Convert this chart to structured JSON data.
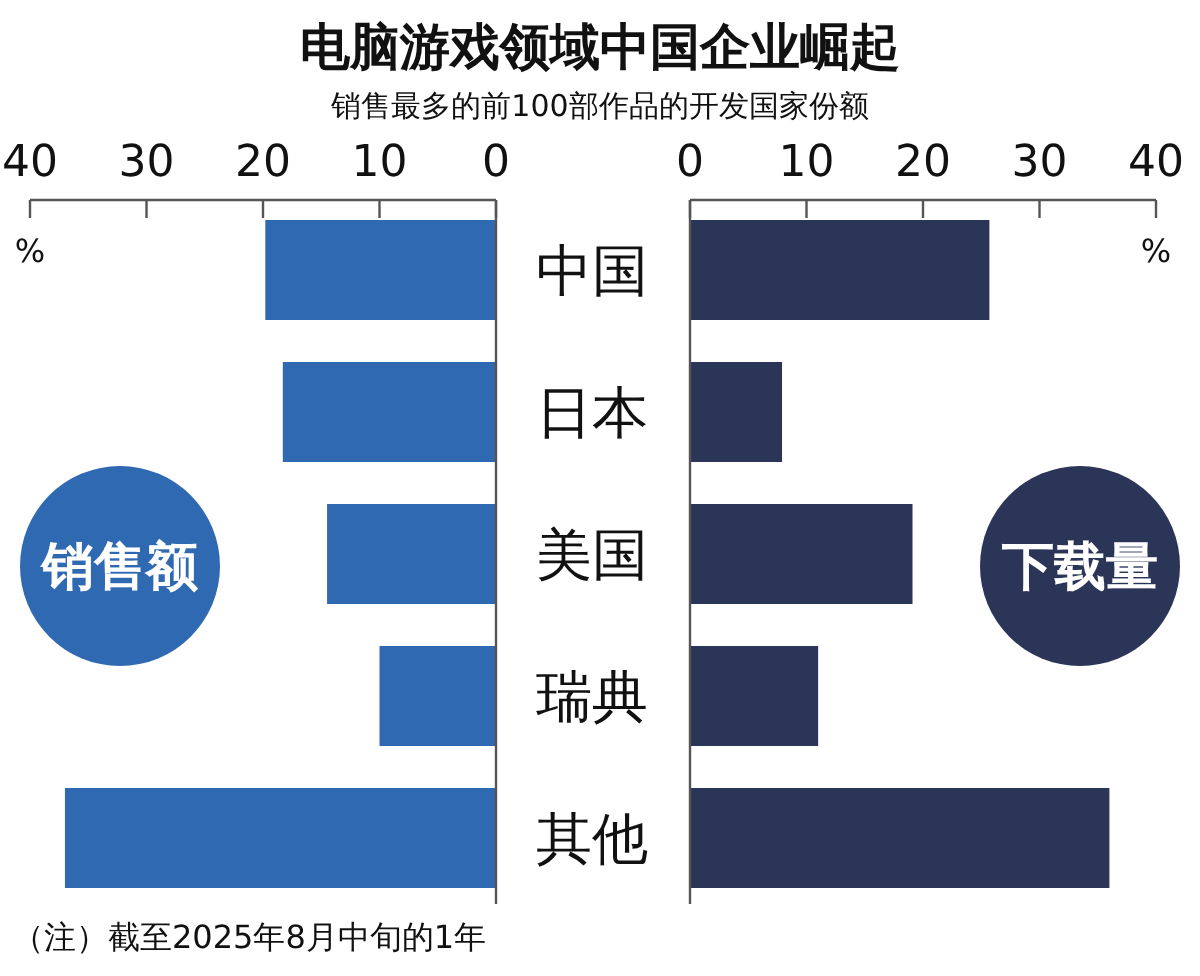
{
  "chart_data": [
    {
      "type": "other",
      "title": "电脑游戏领域中国企业崛起",
      "subtitle": "销售最多的前100部作品的开发国家份额",
      "annotations": [
        "（注）截至2025年8月中旬的1年"
      ]
    },
    {
      "type": "bar",
      "orientation": "horizontal",
      "title": "销售额",
      "xlabel": "%",
      "categories": [
        "中国",
        "日本",
        "美国",
        "瑞典",
        "其他"
      ],
      "values": [
        19.8,
        18.3,
        14.5,
        10.0,
        37.0
      ],
      "color": "#2e69b1",
      "xlim": [
        40,
        0
      ],
      "xticks": [
        40,
        30,
        20,
        10,
        0
      ]
    },
    {
      "type": "bar",
      "orientation": "horizontal",
      "title": "下载量",
      "xlabel": "%",
      "categories": [
        null,
        null,
        null,
        null,
        null
      ],
      "values": [
        25.7,
        7.9,
        19.1,
        11.0,
        36.0
      ],
      "color": "#2b3557",
      "xlim": [
        0,
        40
      ],
      "xticks": [
        0,
        10,
        20,
        30,
        40
      ]
    }
  ]
}
